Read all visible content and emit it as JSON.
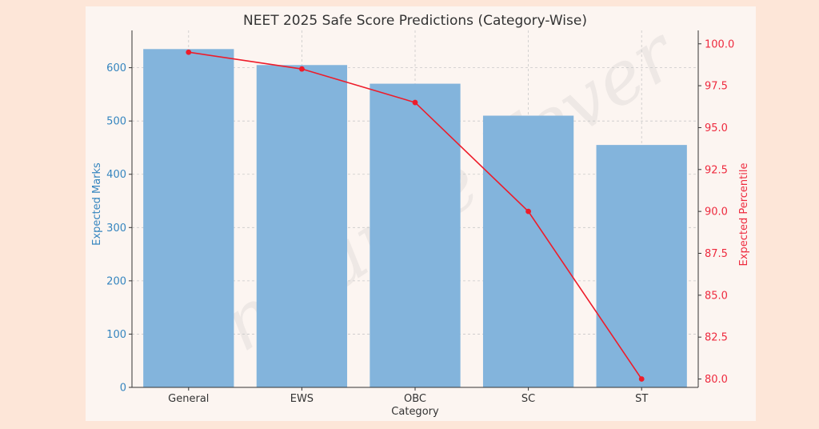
{
  "chart_data": {
    "type": "bar",
    "title": "NEET 2025 Safe Score Predictions (Category-Wise)",
    "xlabel": "Category",
    "ylabel": "Expected Marks",
    "y2label": "Expected Percentile",
    "categories": [
      "General",
      "EWS",
      "OBC",
      "SC",
      "ST"
    ],
    "series": [
      {
        "type": "bar",
        "values": [
          635,
          605,
          570,
          510,
          455
        ],
        "axis": "left"
      },
      {
        "type": "line",
        "values": [
          99.5,
          98.5,
          96.5,
          90.0,
          80.0
        ],
        "axis": "right"
      }
    ],
    "ylim": [
      0,
      670
    ],
    "y2lim": [
      79.5,
      100.8
    ],
    "yticks": [
      "0",
      "100",
      "200",
      "300",
      "400",
      "500",
      "600"
    ],
    "y2ticks": [
      "80.0",
      "82.5",
      "85.0",
      "87.5",
      "90.0",
      "92.5",
      "95.0",
      "97.5",
      "100.0"
    ],
    "grid": true,
    "colors": {
      "bar": "#83b4dc",
      "line": "#ee1c2a",
      "left_axis": "#3585bf",
      "right_axis": "#ee2a3e"
    }
  },
  "watermark": {
    "text": "Entrance Fever"
  }
}
